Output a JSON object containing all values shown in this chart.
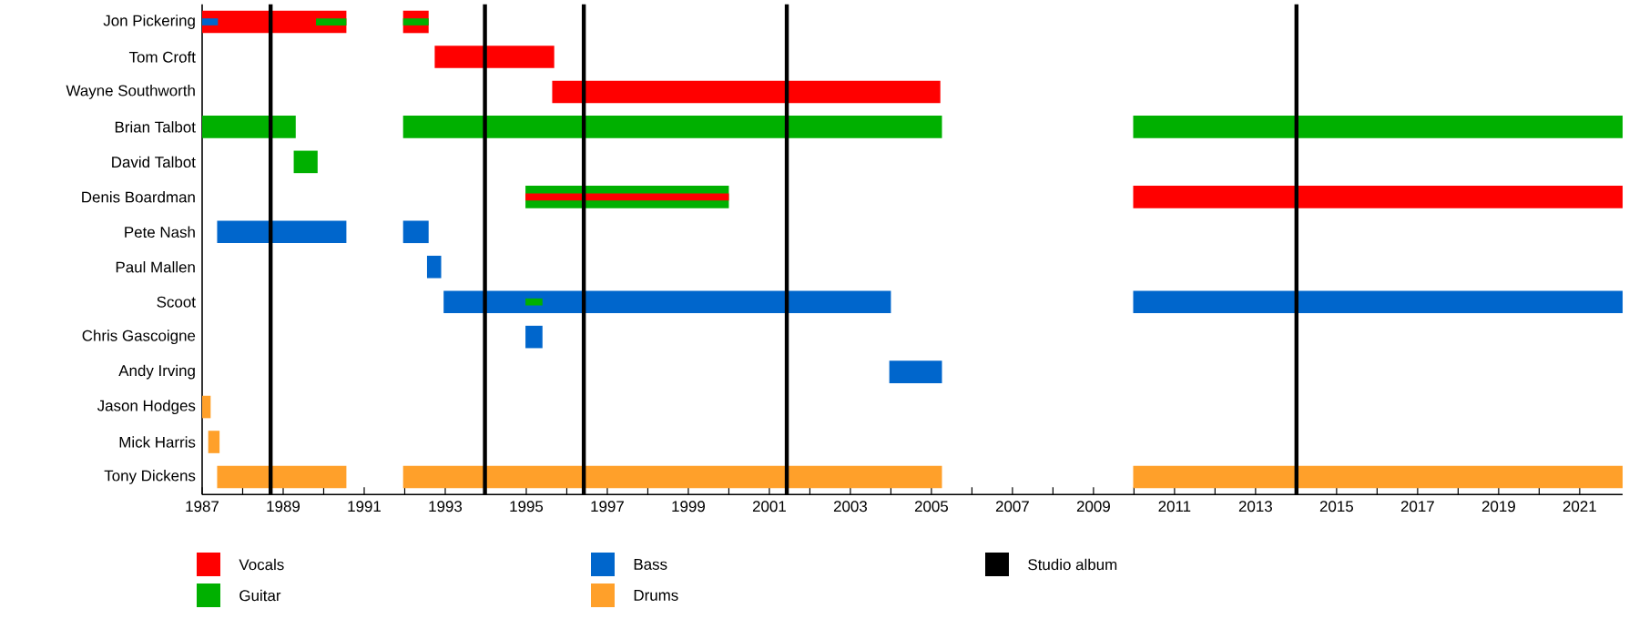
{
  "chart_data": {
    "type": "bar",
    "orientation": "horizontal",
    "categories": [
      "Jon Pickering",
      "Tom Croft",
      "Wayne Southworth",
      "Brian Talbot",
      "David Talbot",
      "Denis Boardman",
      "Pete Nash",
      "Paul Mallen",
      "Scoot",
      "Chris Gascoigne",
      "Andy Irving",
      "Jason Hodges",
      "Mick Harris",
      "Tony Dickens"
    ],
    "series": [
      {
        "name": "Vocals",
        "color": "#ff0000",
        "base": [
          1987.0,
          1992.74,
          1995.64,
          null,
          null,
          2009.98,
          null,
          null,
          null,
          null,
          null,
          null,
          null,
          null
        ],
        "values": [
          3.56,
          2.95,
          9.58,
          null,
          null,
          12.08,
          null,
          null,
          null,
          null,
          null,
          null,
          null,
          null
        ]
      },
      {
        "color": "#ff0000",
        "base": [
          1991.96,
          null,
          null,
          null,
          null,
          null,
          null,
          null,
          null,
          null,
          null,
          null,
          null,
          null
        ],
        "values": [
          0.63,
          null,
          null,
          null,
          null,
          null,
          null,
          null,
          null,
          null,
          null,
          null,
          null,
          null
        ]
      },
      {
        "name": "Guitar",
        "color": "#00b000",
        "base": [
          1989.81,
          null,
          null,
          1987.0,
          1989.26,
          1994.98,
          null,
          null,
          null,
          null,
          null,
          null,
          null,
          null
        ],
        "values": [
          0.75,
          null,
          null,
          2.31,
          0.59,
          5.02,
          null,
          null,
          null,
          null,
          null,
          null,
          null,
          null
        ]
      },
      {
        "color": "#ff0000",
        "base": [
          null,
          null,
          null,
          null,
          null,
          1994.98,
          null,
          null,
          null,
          null,
          null,
          null,
          null,
          null
        ],
        "values": [
          null,
          null,
          null,
          null,
          null,
          5.02,
          null,
          null,
          null,
          null,
          null,
          null,
          null,
          null
        ]
      },
      {
        "color": "#00b000",
        "base": [
          1991.96,
          null,
          null,
          1991.96,
          null,
          null,
          null,
          null,
          null,
          null,
          null,
          null,
          null,
          null
        ],
        "values": [
          0.63,
          null,
          null,
          13.3,
          null,
          null,
          null,
          null,
          null,
          null,
          null,
          null,
          null,
          null
        ]
      },
      {
        "color": "#00b000",
        "base": [
          null,
          null,
          null,
          2009.98,
          null,
          null,
          null,
          null,
          null,
          null,
          null,
          null,
          null,
          null
        ],
        "values": [
          null,
          null,
          null,
          12.08,
          null,
          null,
          null,
          null,
          null,
          null,
          null,
          null,
          null,
          null
        ]
      },
      {
        "name": "Bass",
        "color": "#0066cc",
        "base": [
          1987.0,
          null,
          null,
          null,
          null,
          null,
          1987.37,
          1992.55,
          1992.96,
          1994.98,
          2003.96,
          null,
          null,
          null
        ],
        "values": [
          0.39,
          null,
          null,
          null,
          null,
          null,
          3.19,
          0.35,
          11.04,
          0.42,
          1.3,
          null,
          null,
          null
        ]
      },
      {
        "color": "#0066cc",
        "base": [
          null,
          null,
          null,
          null,
          null,
          null,
          1991.96,
          null,
          2009.98,
          null,
          null,
          null,
          null,
          null
        ],
        "values": [
          null,
          null,
          null,
          null,
          null,
          null,
          0.63,
          null,
          12.08,
          null,
          null,
          null,
          null,
          null
        ]
      },
      {
        "color": "#00b000",
        "base": [
          null,
          null,
          null,
          null,
          null,
          null,
          null,
          null,
          1994.98,
          null,
          null,
          null,
          null,
          null
        ],
        "values": [
          null,
          null,
          null,
          null,
          null,
          null,
          null,
          null,
          0.42,
          null,
          null,
          null,
          null,
          null
        ]
      },
      {
        "name": "Drums",
        "color": "#ffa02a",
        "base": [
          null,
          null,
          null,
          null,
          null,
          null,
          null,
          null,
          null,
          null,
          null,
          1987.0,
          1987.15,
          1987.37
        ],
        "values": [
          null,
          null,
          null,
          null,
          null,
          null,
          null,
          null,
          null,
          null,
          null,
          0.21,
          0.28,
          3.19
        ]
      },
      {
        "color": "#ffa02a",
        "base": [
          null,
          null,
          null,
          null,
          null,
          null,
          null,
          null,
          null,
          null,
          null,
          null,
          null,
          1991.96
        ],
        "values": [
          null,
          null,
          null,
          null,
          null,
          null,
          null,
          null,
          null,
          null,
          null,
          null,
          null,
          13.3
        ]
      },
      {
        "color": "#ffa02a",
        "base": [
          null,
          null,
          null,
          null,
          null,
          null,
          null,
          null,
          null,
          null,
          null,
          null,
          null,
          2009.98
        ],
        "values": [
          null,
          null,
          null,
          null,
          null,
          null,
          null,
          null,
          null,
          null,
          null,
          null,
          null,
          12.08
        ]
      }
    ],
    "ref_lines": [
      {
        "axis": "x",
        "value": 1988.69,
        "color": "#000000",
        "label": "Studio album"
      },
      {
        "axis": "x",
        "value": 1993.98,
        "color": "#000000"
      },
      {
        "axis": "x",
        "value": 1996.42,
        "color": "#000000"
      },
      {
        "axis": "x",
        "value": 2001.43,
        "color": "#000000"
      },
      {
        "axis": "x",
        "value": 2014.01,
        "color": "#000000"
      }
    ],
    "xlim": [
      1987,
      2022.06
    ],
    "xticks": [
      1987,
      {
        "value": 1988,
        "label": null
      },
      1989,
      {
        "value": 1990,
        "label": null
      },
      1991,
      {
        "value": 1992,
        "label": null
      },
      1993,
      {
        "value": 1994,
        "label": null
      },
      1995,
      {
        "value": 1996,
        "label": null
      },
      1997,
      {
        "value": 1998,
        "label": null
      },
      1999,
      {
        "value": 2000,
        "label": null
      },
      2001,
      {
        "value": 2002,
        "label": null
      },
      2003,
      {
        "value": 2004,
        "label": null
      },
      2005,
      {
        "value": 2006,
        "label": null
      },
      2007,
      {
        "value": 2008,
        "label": null
      },
      2009,
      {
        "value": 2010,
        "label": null
      },
      2011,
      {
        "value": 2012,
        "label": null
      },
      2013,
      {
        "value": 2014,
        "label": null
      },
      2015,
      {
        "value": 2016,
        "label": null
      },
      2017,
      {
        "value": 2018,
        "label": null
      },
      2019,
      {
        "value": 2020,
        "label": null
      },
      2021
    ],
    "legend": "bottom"
  }
}
